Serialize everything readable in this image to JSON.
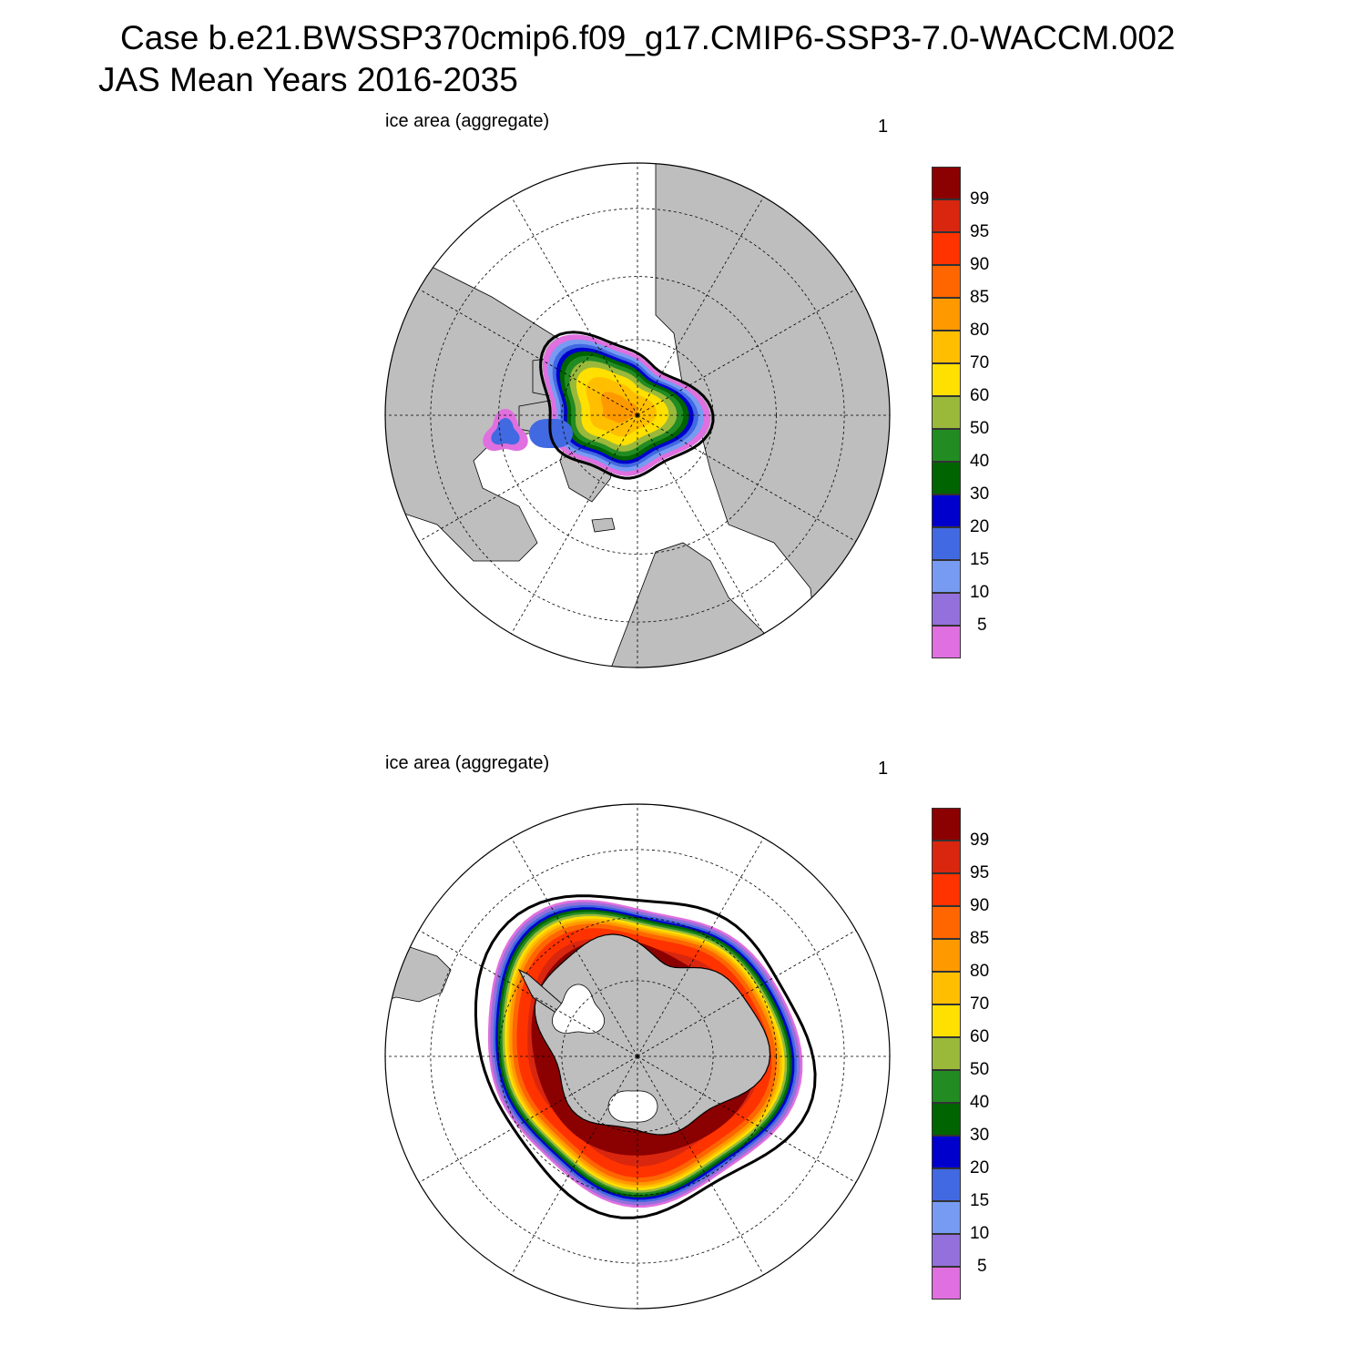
{
  "title": {
    "line1": "Case b.e21.BWSSP370cmip6.f09_g17.CMIP6-SSP3-7.0-WACCM.002",
    "line2": "JAS Mean   Years 2016-2035"
  },
  "colors": {
    "land": "#bebebe",
    "ocean": "#ffffff",
    "contour": "#000000"
  },
  "colorbar": {
    "colors": [
      "#e06fdf",
      "#9370db",
      "#789bf2",
      "#4169e1",
      "#0000cd",
      "#006400",
      "#228b22",
      "#9ab93b",
      "#ffe000",
      "#ffbf00",
      "#ff9900",
      "#ff6600",
      "#ff3300",
      "#d9260f",
      "#8b0000"
    ],
    "labels": [
      "5",
      "10",
      "15",
      "20",
      "30",
      "40",
      "50",
      "60",
      "70",
      "80",
      "85",
      "90",
      "95",
      "99"
    ]
  },
  "panels": [
    {
      "id": "north",
      "variable": "ice area  (aggregate)",
      "label_right": "1",
      "hemisphere": "north"
    },
    {
      "id": "south",
      "variable": "ice area  (aggregate)",
      "label_right": "1",
      "hemisphere": "south"
    }
  ]
}
